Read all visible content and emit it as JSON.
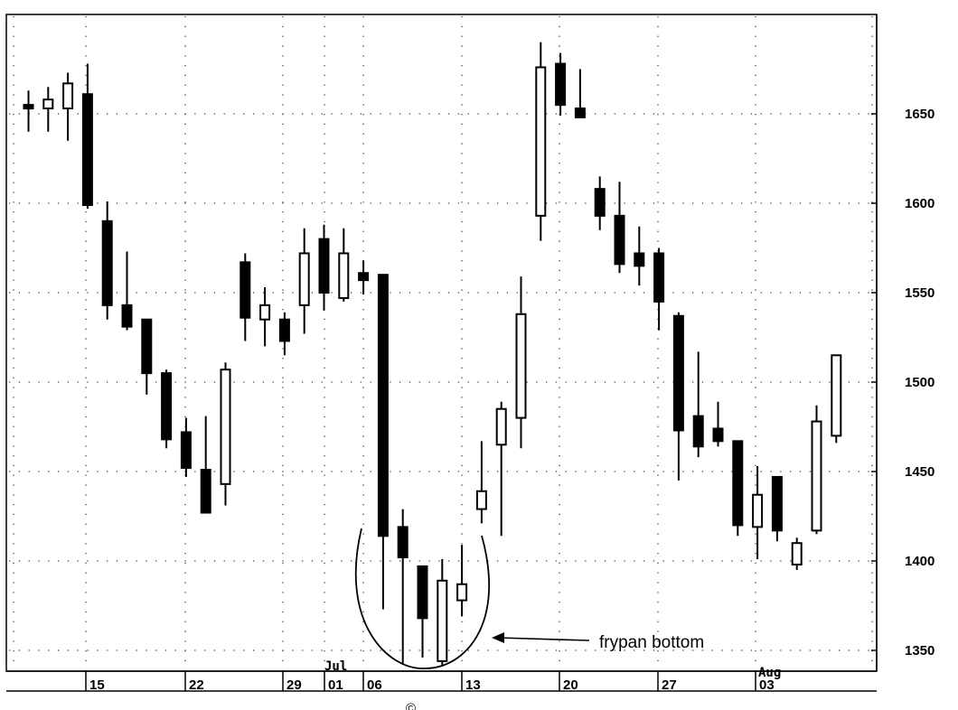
{
  "chart_data": {
    "type": "candlestick",
    "y_ticks": [
      1650,
      1600,
      1550,
      1500,
      1450,
      1400,
      1350
    ],
    "ylim": [
      1333,
      1695
    ],
    "x_date_labels": [
      "15",
      "22",
      "29",
      "01",
      "06",
      "13",
      "20",
      "27",
      "03"
    ],
    "month_labels": [
      "Jul",
      "Aug"
    ],
    "grid": true,
    "annotation": "frypan bottom",
    "footer": "©",
    "candles": [
      {
        "date": "Jun 10",
        "open": 1655,
        "close": 1655,
        "high": 1663,
        "low": 1640,
        "filled": true
      },
      {
        "date": "Jun 11",
        "open": 1653,
        "close": 1658,
        "high": 1665,
        "low": 1640,
        "filled": false
      },
      {
        "date": "Jun 12",
        "open": 1653,
        "close": 1667,
        "high": 1673,
        "low": 1635,
        "filled": false
      },
      {
        "date": "Jun 15",
        "open": 1661,
        "close": 1599,
        "high": 1678,
        "low": 1597,
        "filled": true
      },
      {
        "date": "Jun 16",
        "open": 1590,
        "close": 1543,
        "high": 1601,
        "low": 1535,
        "filled": true
      },
      {
        "date": "Jun 17",
        "open": 1543,
        "close": 1531,
        "high": 1573,
        "low": 1529,
        "filled": true
      },
      {
        "date": "Jun 18",
        "open": 1535,
        "close": 1505,
        "high": 1535,
        "low": 1493,
        "filled": true
      },
      {
        "date": "Jun 19",
        "open": 1505,
        "close": 1468,
        "high": 1507,
        "low": 1463,
        "filled": true
      },
      {
        "date": "Jun 22",
        "open": 1472,
        "close": 1452,
        "high": 1480,
        "low": 1447,
        "filled": true
      },
      {
        "date": "Jun 23",
        "open": 1451,
        "close": 1427,
        "high": 1481,
        "low": 1427,
        "filled": true
      },
      {
        "date": "Jun 24",
        "open": 1443,
        "close": 1507,
        "high": 1511,
        "low": 1431,
        "filled": false
      },
      {
        "date": "Jun 25",
        "open": 1567,
        "close": 1536,
        "high": 1572,
        "low": 1523,
        "filled": true
      },
      {
        "date": "Jun 26",
        "open": 1535,
        "close": 1543,
        "high": 1553,
        "low": 1520,
        "filled": false
      },
      {
        "date": "Jun 29",
        "open": 1535,
        "close": 1523,
        "high": 1539,
        "low": 1515,
        "filled": true
      },
      {
        "date": "Jun 30",
        "open": 1543,
        "close": 1572,
        "high": 1586,
        "low": 1527,
        "filled": false
      },
      {
        "date": "Jul 01",
        "open": 1580,
        "close": 1550,
        "high": 1588,
        "low": 1540,
        "filled": true
      },
      {
        "date": "Jul 02",
        "open": 1547,
        "close": 1572,
        "high": 1586,
        "low": 1545,
        "filled": false
      },
      {
        "date": "Jul 06",
        "open": 1561,
        "close": 1557,
        "high": 1568,
        "low": 1549,
        "filled": true
      },
      {
        "date": "Jul 07",
        "open": 1560,
        "close": 1414,
        "high": 1560,
        "low": 1373,
        "filled": true
      },
      {
        "date": "Jul 08",
        "open": 1419,
        "close": 1402,
        "high": 1429,
        "low": 1342,
        "filled": true
      },
      {
        "date": "Jul 09",
        "open": 1397,
        "close": 1368,
        "high": 1397,
        "low": 1346,
        "filled": true
      },
      {
        "date": "Jul 10",
        "open": 1344,
        "close": 1389,
        "high": 1401,
        "low": 1342,
        "filled": false
      },
      {
        "date": "Jul 13",
        "open": 1378,
        "close": 1387,
        "high": 1409,
        "low": 1369,
        "filled": false
      },
      {
        "date": "Jul 14",
        "open": 1429,
        "close": 1439,
        "high": 1467,
        "low": 1421,
        "filled": false
      },
      {
        "date": "Jul 15",
        "open": 1465,
        "close": 1485,
        "high": 1489,
        "low": 1414,
        "filled": false
      },
      {
        "date": "Jul 16",
        "open": 1480,
        "close": 1538,
        "high": 1559,
        "low": 1463,
        "filled": false
      },
      {
        "date": "Jul 17",
        "open": 1593,
        "close": 1676,
        "high": 1690,
        "low": 1579,
        "filled": false
      },
      {
        "date": "Jul 20",
        "open": 1678,
        "close": 1655,
        "high": 1684,
        "low": 1649,
        "filled": true
      },
      {
        "date": "Jul 21",
        "open": 1653,
        "close": 1648,
        "high": 1675,
        "low": 1648,
        "filled": true
      },
      {
        "date": "Jul 22",
        "open": 1608,
        "close": 1593,
        "high": 1615,
        "low": 1585,
        "filled": true
      },
      {
        "date": "Jul 23",
        "open": 1593,
        "close": 1566,
        "high": 1612,
        "low": 1561,
        "filled": true
      },
      {
        "date": "Jul 24",
        "open": 1572,
        "close": 1565,
        "high": 1587,
        "low": 1554,
        "filled": true
      },
      {
        "date": "Jul 27",
        "open": 1572,
        "close": 1545,
        "high": 1575,
        "low": 1529,
        "filled": true
      },
      {
        "date": "Jul 28",
        "open": 1537,
        "close": 1473,
        "high": 1539,
        "low": 1445,
        "filled": true
      },
      {
        "date": "Jul 29",
        "open": 1481,
        "close": 1464,
        "high": 1517,
        "low": 1458,
        "filled": true
      },
      {
        "date": "Jul 30",
        "open": 1474,
        "close": 1467,
        "high": 1489,
        "low": 1464,
        "filled": true
      },
      {
        "date": "Jul 31",
        "open": 1467,
        "close": 1420,
        "high": 1467,
        "low": 1414,
        "filled": true
      },
      {
        "date": "Aug 03",
        "open": 1419,
        "close": 1437,
        "high": 1453,
        "low": 1401,
        "filled": false
      },
      {
        "date": "Aug 04",
        "open": 1447,
        "close": 1417,
        "high": 1447,
        "low": 1411,
        "filled": true
      },
      {
        "date": "Aug 05",
        "open": 1398,
        "close": 1410,
        "high": 1413,
        "low": 1395,
        "filled": false
      },
      {
        "date": "Aug 06",
        "open": 1417,
        "close": 1478,
        "high": 1487,
        "low": 1415,
        "filled": false
      },
      {
        "date": "Aug 07",
        "open": 1470,
        "close": 1515,
        "high": 1515,
        "low": 1466,
        "filled": false
      }
    ]
  }
}
